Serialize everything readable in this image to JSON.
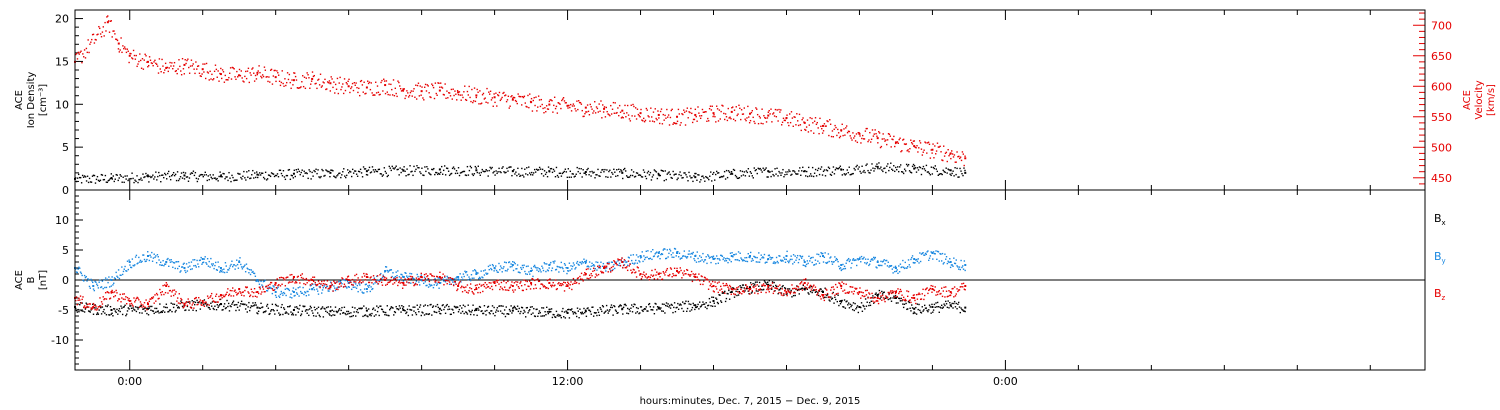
{
  "chart_data": [
    {
      "type": "scatter",
      "panel": "top",
      "ylabel_lines": [
        "ACE",
        "Ion Density",
        "[cm⁻³]"
      ],
      "y2label_lines": [
        "ACE",
        "Velocity",
        "[km/s]"
      ],
      "ylim": [
        0,
        21
      ],
      "y2lim": [
        430,
        725
      ],
      "yticks": [
        0,
        5,
        10,
        15,
        20
      ],
      "y2ticks": [
        450,
        500,
        550,
        600,
        650,
        700
      ],
      "colors": {
        "density": "#000000",
        "velocity": "#e60000"
      },
      "series": [
        {
          "name": "",
          "axis": "left",
          "color": "#000000",
          "x": [
            -1.5,
            -0.5,
            0.5,
            1.5,
            2.5,
            3.5,
            4.5,
            5.5,
            6.5,
            7.5,
            8.5,
            9.5,
            10.5,
            11.5,
            12.5,
            13.5,
            14.5,
            15.5,
            16.5,
            17.5,
            18.5,
            19.5,
            20.5,
            21.5,
            22.5,
            22.9
          ],
          "y": [
            1.3,
            1.4,
            1.6,
            1.7,
            1.6,
            1.8,
            1.9,
            2.0,
            2.2,
            2.3,
            2.4,
            2.3,
            2.2,
            2.2,
            2.1,
            2.0,
            1.8,
            1.5,
            1.9,
            2.2,
            2.2,
            2.4,
            2.7,
            2.5,
            2.3,
            2.0
          ]
        },
        {
          "name": "",
          "axis": "right",
          "color": "#e60000",
          "x": [
            -1.5,
            -0.6,
            -0.3,
            0.0,
            0.5,
            1.0,
            1.5,
            2.0,
            2.5,
            3.0,
            3.5,
            4.0,
            4.5,
            5.0,
            5.5,
            6.0,
            6.5,
            7.0,
            7.5,
            8.0,
            8.5,
            9.0,
            9.5,
            10.0,
            10.5,
            11.0,
            11.5,
            12.0,
            12.5,
            13.0,
            13.5,
            14.0,
            14.5,
            15.0,
            15.5,
            16.0,
            16.5,
            17.0,
            17.5,
            18.0,
            18.5,
            19.0,
            19.5,
            20.0,
            20.5,
            21.0,
            21.5,
            22.0,
            22.5,
            22.9
          ],
          "y": [
            640,
            705,
            670,
            650,
            640,
            630,
            635,
            628,
            620,
            618,
            622,
            615,
            610,
            612,
            605,
            600,
            598,
            602,
            595,
            592,
            593,
            590,
            585,
            582,
            578,
            574,
            570,
            568,
            565,
            563,
            560,
            556,
            553,
            550,
            553,
            556,
            558,
            555,
            552,
            548,
            540,
            535,
            528,
            522,
            515,
            508,
            502,
            496,
            490,
            482
          ]
        }
      ]
    },
    {
      "type": "scatter",
      "panel": "bottom",
      "ylabel_lines": [
        "ACE",
        "B",
        "[nT]"
      ],
      "ylim": [
        -15,
        15
      ],
      "yticks": [
        -10,
        -5,
        0,
        5,
        10
      ],
      "zero_line": true,
      "series": [
        {
          "name": "B",
          "subscript": "x",
          "color": "#000000",
          "x": [
            -1.5,
            -0.5,
            0.5,
            1.5,
            2.5,
            3.5,
            4.5,
            5.5,
            6.5,
            7.5,
            8.5,
            9.5,
            10.5,
            11.5,
            12.0,
            12.5,
            13.5,
            14.5,
            15.5,
            16.0,
            16.5,
            17.0,
            17.5,
            18.0,
            18.5,
            19.0,
            19.5,
            20.0,
            20.5,
            21.0,
            21.5,
            22.0,
            22.5,
            22.9
          ],
          "y": [
            -4.5,
            -5.0,
            -4.8,
            -4.2,
            -4.0,
            -4.6,
            -5.0,
            -5.2,
            -5.1,
            -5.0,
            -4.8,
            -5.0,
            -5.1,
            -5.3,
            -5.5,
            -5.2,
            -4.8,
            -4.6,
            -4.2,
            -3.5,
            -2.0,
            -1.2,
            -0.8,
            -2.0,
            -1.5,
            -2.0,
            -3.5,
            -4.5,
            -2.5,
            -3.0,
            -4.8,
            -4.5,
            -4.2,
            -4.6
          ]
        },
        {
          "name": "B",
          "subscript": "y",
          "color": "#1a88e0",
          "x": [
            -1.5,
            -1.0,
            -0.5,
            0.0,
            0.5,
            1.0,
            1.5,
            2.0,
            2.5,
            3.0,
            3.5,
            4.0,
            4.5,
            5.0,
            5.5,
            6.0,
            6.5,
            7.0,
            7.5,
            8.0,
            8.5,
            9.0,
            9.5,
            10.0,
            10.5,
            11.0,
            11.5,
            12.0,
            12.5,
            13.0,
            13.5,
            14.0,
            14.5,
            15.0,
            15.5,
            16.0,
            16.5,
            17.0,
            17.5,
            18.0,
            18.5,
            19.0,
            19.5,
            20.0,
            20.5,
            21.0,
            21.5,
            22.0,
            22.5,
            22.9
          ],
          "y": [
            2.0,
            -1.0,
            0.0,
            3.0,
            4.0,
            3.0,
            2.0,
            3.5,
            2.0,
            3.0,
            0.0,
            -2.0,
            -2.0,
            -1.5,
            -1.0,
            -0.5,
            -1.5,
            1.5,
            0.5,
            0.0,
            -0.5,
            0.5,
            1.0,
            2.0,
            2.5,
            1.5,
            2.5,
            2.0,
            3.0,
            2.0,
            3.0,
            4.0,
            4.5,
            4.5,
            4.0,
            3.5,
            4.0,
            4.0,
            3.5,
            4.0,
            3.0,
            4.0,
            2.5,
            3.5,
            3.0,
            2.0,
            3.5,
            4.5,
            3.0,
            2.5
          ]
        },
        {
          "name": "B",
          "subscript": "z",
          "color": "#e60000",
          "x": [
            -1.5,
            -1.0,
            -0.5,
            0.0,
            0.5,
            1.0,
            1.5,
            2.0,
            2.5,
            3.0,
            3.5,
            4.0,
            4.5,
            5.0,
            5.5,
            6.0,
            6.5,
            7.0,
            7.5,
            8.0,
            8.5,
            9.0,
            9.5,
            10.0,
            10.5,
            11.0,
            11.5,
            12.0,
            12.5,
            13.0,
            13.5,
            14.0,
            14.5,
            15.0,
            15.5,
            16.0,
            16.5,
            17.0,
            17.5,
            18.0,
            18.5,
            19.0,
            19.5,
            20.0,
            20.5,
            21.0,
            21.5,
            22.0,
            22.5,
            22.9
          ],
          "y": [
            -3.0,
            -4.5,
            -2.0,
            -3.5,
            -4.0,
            -1.0,
            -4.0,
            -3.5,
            -2.5,
            -1.5,
            -2.0,
            -0.5,
            0.5,
            0.0,
            -1.0,
            0.0,
            0.5,
            0.0,
            -0.5,
            0.5,
            0.5,
            -1.0,
            -1.5,
            -0.5,
            -1.0,
            -0.5,
            -0.5,
            -1.0,
            1.0,
            2.0,
            3.0,
            1.0,
            1.0,
            1.5,
            0.5,
            -1.0,
            -1.5,
            -1.5,
            -1.0,
            -2.0,
            -0.5,
            -2.5,
            -1.0,
            -2.0,
            -3.0,
            -2.0,
            -3.0,
            -1.5,
            -2.0,
            -1.0
          ]
        }
      ]
    }
  ],
  "xaxis": {
    "title": "hours:minutes, Dec.  7, 2015 − Dec.  9, 2015",
    "range_hours": [
      -1.5,
      35.5
    ],
    "tick_labels": [
      {
        "hour": 0,
        "label": "0:00"
      },
      {
        "hour": 12,
        "label": "12:00"
      },
      {
        "hour": 24,
        "label": "0:00"
      }
    ],
    "minor_tick_step_hours": 2
  }
}
